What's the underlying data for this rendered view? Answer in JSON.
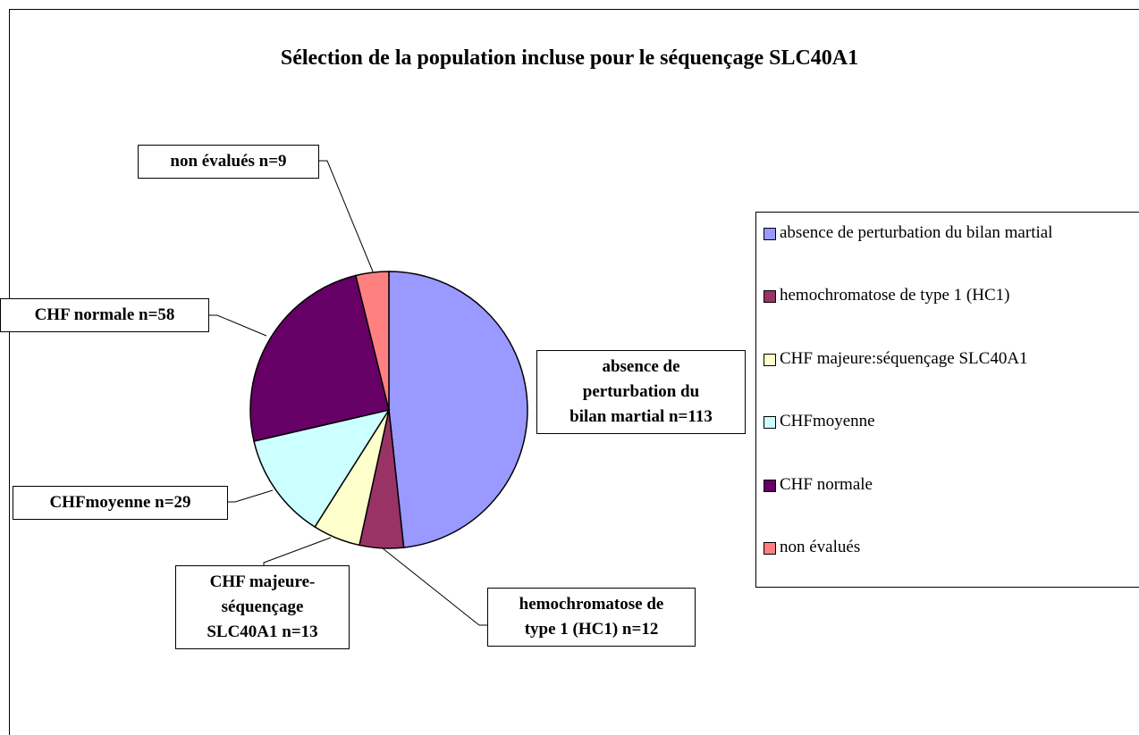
{
  "chart_data": {
    "type": "pie",
    "title": "Sélection de la population incluse pour le séquençage SLC40A1",
    "categories": [
      "absence de perturbation du bilan martial",
      "hemochromatose de type 1 (HC1)",
      "CHF majeure:séquençage SLC40A1",
      "CHFmoyenne",
      "CHF normale",
      "non évalués"
    ],
    "values": [
      113,
      12,
      13,
      29,
      58,
      9
    ],
    "value_labels": [
      "absence de\nperturbation du\nbilan martial  n=113",
      "hemochromatose de\ntype 1 (HC1)  n=12",
      "CHF majeure-\nséquençage\nSLC40A1  n=13",
      "CHFmoyenne  n=29",
      "CHF normale  n=58",
      "non évalués  n=9"
    ],
    "colors": [
      "#9999ff",
      "#993366",
      "#ffffcc",
      "#ccffff",
      "#660066",
      "#ff8080"
    ],
    "legend": "right"
  }
}
